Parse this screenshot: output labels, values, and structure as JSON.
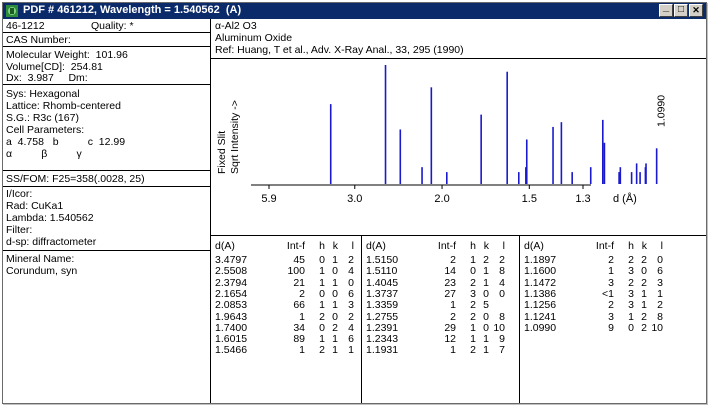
{
  "window": {
    "title": "PDF # 461212, Wavelength = 1.540562  (A)",
    "buttons": [
      "_",
      "□",
      "✕"
    ],
    "icon": "pdf-card-icon"
  },
  "card": {
    "pdf_id": "46-1212",
    "quality": "Quality: *",
    "cas": "CAS Number:",
    "mol_weight": "Molecular Weight:  101.96",
    "volume": "Volume[CD]:  254.81",
    "density": "Dx:  3.987     Dm:",
    "sys": "Sys: Hexagonal",
    "lattice": "Lattice: Rhomb-centered",
    "sg": "S.G.: R3c (167)",
    "cell_params": "Cell Parameters:",
    "cell_abc": "a  4.758   b          c  12.99",
    "cell_angles": "α          β          γ",
    "ssfom": "SS/FOM: F25=358(.0028, 25)",
    "icor": "I/Icor:",
    "rad": "Rad: CuKa1",
    "lambda": "Lambda: 1.540562",
    "filter": "Filter:",
    "dsp": "d-sp: diffractometer",
    "mineral_name": "Mineral Name:",
    "mineral": "Corundum, syn",
    "formula": "α-Al2 O3",
    "name": "Aluminum Oxide",
    "ref": "Ref: Huang, T et al., Adv. X-Ray Anal., 33, 295 (1990)"
  },
  "chart_data": {
    "type": "bar",
    "ylabel_1": "Fixed  Slit",
    "ylabel_2": "Sqrt Intensity  ->",
    "xlabel": "d (Å)",
    "x_ticks": [
      "5.9",
      "3.0",
      "2.0",
      "1.5",
      "1.3"
    ],
    "x_tick_values": [
      5.9,
      3.0,
      2.0,
      1.5,
      1.3
    ],
    "scale": "reciprocal",
    "marker_label": "1.0990",
    "peaks": [
      {
        "d": 3.4797,
        "int": 45
      },
      {
        "d": 2.5508,
        "int": 100
      },
      {
        "d": 2.3794,
        "int": 21
      },
      {
        "d": 2.1654,
        "int": 2
      },
      {
        "d": 2.0853,
        "int": 66
      },
      {
        "d": 1.9643,
        "int": 1
      },
      {
        "d": 1.74,
        "int": 34
      },
      {
        "d": 1.6015,
        "int": 89
      },
      {
        "d": 1.5466,
        "int": 1
      },
      {
        "d": 1.515,
        "int": 2
      },
      {
        "d": 1.511,
        "int": 14
      },
      {
        "d": 1.4045,
        "int": 23
      },
      {
        "d": 1.3737,
        "int": 27
      },
      {
        "d": 1.3359,
        "int": 1
      },
      {
        "d": 1.2755,
        "int": 2
      },
      {
        "d": 1.2391,
        "int": 29
      },
      {
        "d": 1.2343,
        "int": 12
      },
      {
        "d": 1.1931,
        "int": 1
      },
      {
        "d": 1.1897,
        "int": 2
      },
      {
        "d": 1.16,
        "int": 1
      },
      {
        "d": 1.1472,
        "int": 3
      },
      {
        "d": 1.1386,
        "int": 1
      },
      {
        "d": 1.1256,
        "int": 2
      },
      {
        "d": 1.1241,
        "int": 3
      },
      {
        "d": 1.099,
        "int": 9
      }
    ]
  },
  "table": {
    "headers": [
      "d(A)",
      "Int-f",
      "h",
      "k",
      "l"
    ],
    "columns": [
      [
        [
          "3.4797",
          "45",
          "0",
          "1",
          "2"
        ],
        [
          "2.5508",
          "100",
          "1",
          "0",
          "4"
        ],
        [
          "2.3794",
          "21",
          "1",
          "1",
          "0"
        ],
        [
          "2.1654",
          "2",
          "0",
          "0",
          "6"
        ],
        [
          "2.0853",
          "66",
          "1",
          "1",
          "3"
        ],
        [
          "1.9643",
          "1",
          "2",
          "0",
          "2"
        ],
        [
          "1.7400",
          "34",
          "0",
          "2",
          "4"
        ],
        [
          "1.6015",
          "89",
          "1",
          "1",
          "6"
        ],
        [
          "1.5466",
          "1",
          "2",
          "1",
          "1"
        ]
      ],
      [
        [
          "1.5150",
          "2",
          "1",
          "2",
          "2"
        ],
        [
          "1.5110",
          "14",
          "0",
          "1",
          "8"
        ],
        [
          "1.4045",
          "23",
          "2",
          "1",
          "4"
        ],
        [
          "1.3737",
          "27",
          "3",
          "0",
          "0"
        ],
        [
          "1.3359",
          "1",
          "2",
          "5",
          ""
        ],
        [
          "1.2755",
          "2",
          "2",
          "0",
          "8"
        ],
        [
          "1.2391",
          "29",
          "1",
          "0",
          "10"
        ],
        [
          "1.2343",
          "12",
          "1",
          "1",
          "9"
        ],
        [
          "1.1931",
          "1",
          "2",
          "1",
          "7"
        ]
      ],
      [
        [
          "1.1897",
          "2",
          "2",
          "2",
          "0"
        ],
        [
          "1.1600",
          "1",
          "3",
          "0",
          "6"
        ],
        [
          "1.1472",
          "3",
          "2",
          "2",
          "3"
        ],
        [
          "1.1386",
          "<1",
          "3",
          "1",
          "1"
        ],
        [
          "1.1256",
          "2",
          "3",
          "1",
          "2"
        ],
        [
          "1.1241",
          "3",
          "1",
          "2",
          "8"
        ],
        [
          "1.0990",
          "9",
          "0",
          "2",
          "10"
        ]
      ]
    ]
  }
}
